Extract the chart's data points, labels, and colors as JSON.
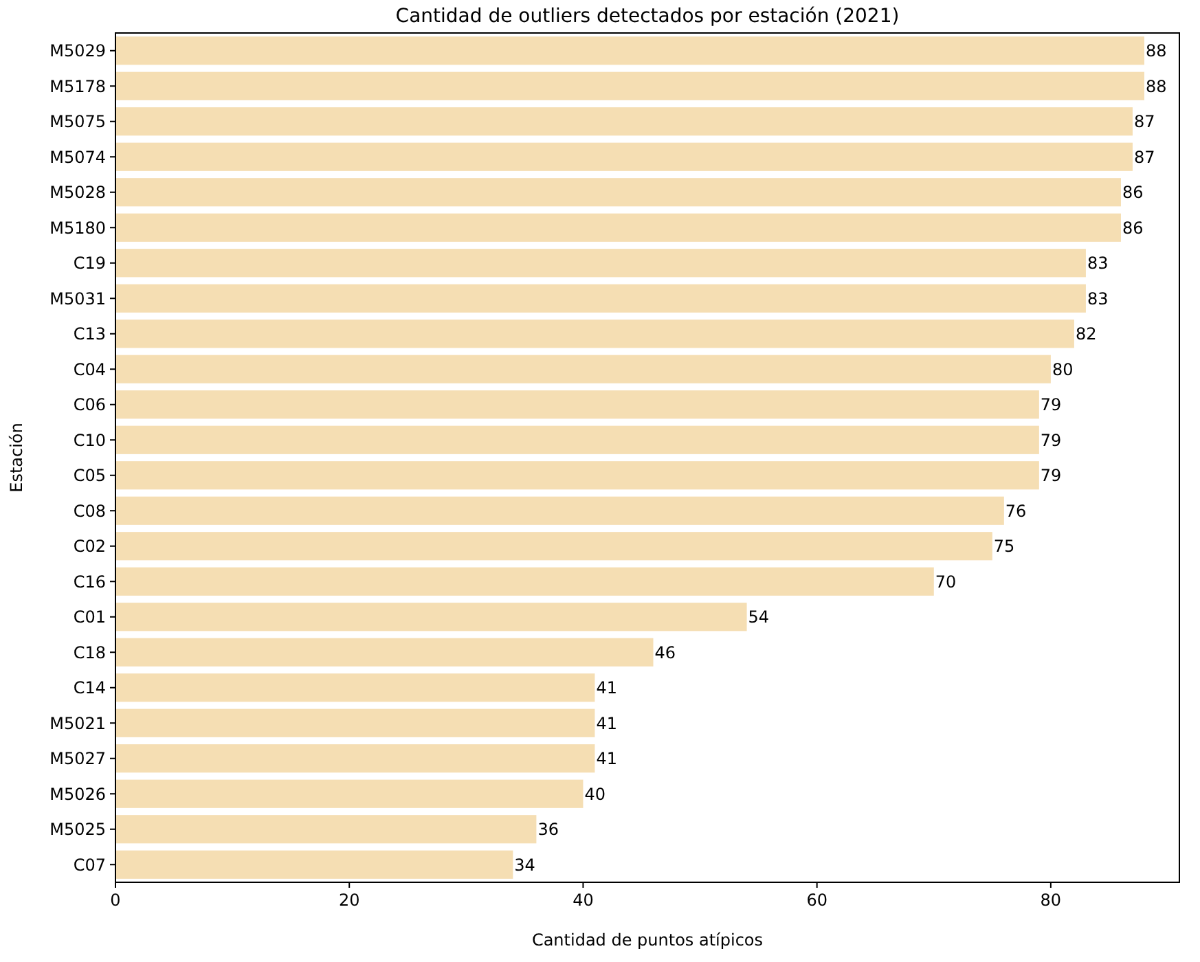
{
  "chart_data": {
    "type": "bar",
    "orientation": "horizontal",
    "title": "Cantidad de outliers detectados por estación (2021)",
    "xlabel": "Cantidad de puntos atípicos",
    "ylabel": "Estación",
    "categories": [
      "M5029",
      "M5178",
      "M5075",
      "M5074",
      "M5028",
      "M5180",
      "C19",
      "M5031",
      "C13",
      "C04",
      "C06",
      "C10",
      "C05",
      "C08",
      "C02",
      "C16",
      "C01",
      "C18",
      "C14",
      "M5021",
      "M5027",
      "M5026",
      "M5025",
      "C07"
    ],
    "values": [
      88,
      88,
      87,
      87,
      86,
      86,
      83,
      83,
      82,
      80,
      79,
      79,
      79,
      76,
      75,
      70,
      54,
      46,
      41,
      41,
      41,
      40,
      36,
      34
    ],
    "color": "#f5deb3",
    "xlim": [
      0,
      91
    ],
    "xticks": [
      0,
      20,
      40,
      60,
      80
    ],
    "grid": false,
    "data_labels": true
  }
}
